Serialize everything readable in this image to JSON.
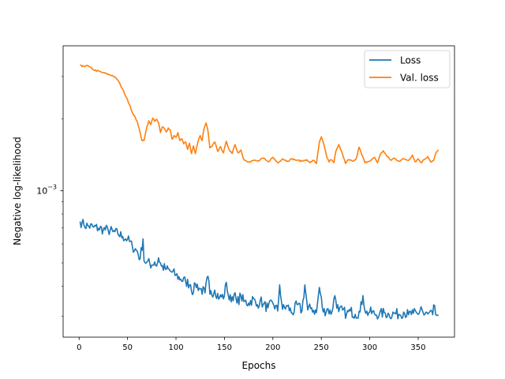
{
  "chart_data": {
    "type": "line",
    "xlabel": "Epochs",
    "ylabel": "Negative log-likelihood",
    "xlim": [
      -16.5,
      387.5
    ],
    "ylim": [
      0.000245,
      0.00403
    ],
    "yscale": "log",
    "x_ticks": [
      0,
      50,
      100,
      150,
      200,
      250,
      300,
      350
    ],
    "y_ticks": [
      {
        "value": 0.001,
        "base": "10",
        "exponent": "−3"
      }
    ],
    "grid": false,
    "legend": {
      "position": "top-right",
      "entries": [
        "Loss",
        "Val. loss"
      ]
    },
    "series": [
      {
        "name": "Loss",
        "color": "#1f77b4",
        "points": [
          [
            1,
            0.000745
          ],
          [
            3,
            0.000735
          ],
          [
            5,
            0.00072
          ],
          [
            10,
            0.000712
          ],
          [
            15,
            0.000705
          ],
          [
            20,
            0.000698
          ],
          [
            25,
            0.00069
          ],
          [
            30,
            0.000685
          ],
          [
            35,
            0.000675
          ],
          [
            40,
            0.000662
          ],
          [
            45,
            0.000645
          ],
          [
            50,
            0.000628
          ],
          [
            55,
            0.000585
          ],
          [
            60,
            0.00056
          ],
          [
            63,
            0.00052
          ],
          [
            66,
            0.00063
          ],
          [
            67,
            0.00051
          ],
          [
            70,
            0.000505
          ],
          [
            75,
            0.00049
          ],
          [
            78,
            0.000505
          ],
          [
            80,
            0.000485
          ],
          [
            82,
            0.000525
          ],
          [
            85,
            0.000485
          ],
          [
            90,
            0.00047
          ],
          [
            95,
            0.00046
          ],
          [
            100,
            0.000445
          ],
          [
            105,
            0.000428
          ],
          [
            110,
            0.000418
          ],
          [
            115,
            0.000406
          ],
          [
            118,
            0.000375
          ],
          [
            120,
            0.00041
          ],
          [
            125,
            0.00039
          ],
          [
            130,
            0.000375
          ],
          [
            133,
            0.00044
          ],
          [
            135,
            0.00037
          ],
          [
            140,
            0.000385
          ],
          [
            145,
            0.000358
          ],
          [
            150,
            0.000365
          ],
          [
            152,
            0.000415
          ],
          [
            155,
            0.00035
          ],
          [
            160,
            0.00037
          ],
          [
            163,
            0.00034
          ],
          [
            167,
            0.000365
          ],
          [
            170,
            0.000345
          ],
          [
            175,
            0.00034
          ],
          [
            180,
            0.000355
          ],
          [
            183,
            0.00033
          ],
          [
            187,
            0.00035
          ],
          [
            190,
            0.000335
          ],
          [
            195,
            0.000325
          ],
          [
            200,
            0.00034
          ],
          [
            205,
            0.000315
          ],
          [
            207,
            0.000405
          ],
          [
            210,
            0.00032
          ],
          [
            215,
            0.00033
          ],
          [
            220,
            0.000308
          ],
          [
            225,
            0.000335
          ],
          [
            230,
            0.000315
          ],
          [
            233,
            0.000405
          ],
          [
            236,
            0.000318
          ],
          [
            240,
            0.000325
          ],
          [
            245,
            0.00031
          ],
          [
            248,
            0.000395
          ],
          [
            252,
            0.000312
          ],
          [
            257,
            0.000322
          ],
          [
            260,
            0.000305
          ],
          [
            264,
            0.000365
          ],
          [
            268,
            0.000313
          ],
          [
            272,
            0.000318
          ],
          [
            276,
            0.000305
          ],
          [
            280,
            0.000315
          ],
          [
            285,
            0.000305
          ],
          [
            290,
            0.000312
          ],
          [
            293,
            0.000365
          ],
          [
            296,
            0.000308
          ],
          [
            300,
            0.000312
          ],
          [
            305,
            0.000306
          ],
          [
            310,
            0.000305
          ],
          [
            315,
            0.00031
          ],
          [
            320,
            0.000304
          ],
          [
            325,
            0.000308
          ],
          [
            330,
            0.000305
          ],
          [
            335,
            0.000312
          ],
          [
            340,
            0.000304
          ],
          [
            345,
            0.000308
          ],
          [
            350,
            0.000305
          ],
          [
            353,
            0.000328
          ],
          [
            356,
            0.000303
          ],
          [
            360,
            0.000306
          ],
          [
            365,
            0.000304
          ],
          [
            367,
            0.000332
          ],
          [
            368,
            0.000305
          ],
          [
            371,
            0.000302
          ]
        ],
        "noise": 0.045
      },
      {
        "name": "Val. loss",
        "color": "#ff7f0e",
        "points": [
          [
            1,
            0.00335
          ],
          [
            3,
            0.0033
          ],
          [
            8,
            0.00334
          ],
          [
            15,
            0.0032
          ],
          [
            25,
            0.00311
          ],
          [
            35,
            0.00302
          ],
          [
            40,
            0.0029
          ],
          [
            45,
            0.00265
          ],
          [
            50,
            0.0024
          ],
          [
            55,
            0.00212
          ],
          [
            60,
            0.00195
          ],
          [
            63,
            0.00175
          ],
          [
            65,
            0.00162
          ],
          [
            67,
            0.00162
          ],
          [
            70,
            0.00185
          ],
          [
            72,
            0.00196
          ],
          [
            74,
            0.00189
          ],
          [
            76,
            0.00201
          ],
          [
            78,
            0.00195
          ],
          [
            80,
            0.00199
          ],
          [
            82,
            0.00192
          ],
          [
            84,
            0.00175
          ],
          [
            86,
            0.00185
          ],
          [
            88,
            0.00182
          ],
          [
            90,
            0.00176
          ],
          [
            92,
            0.00183
          ],
          [
            94,
            0.0018
          ],
          [
            96,
            0.00164
          ],
          [
            98,
            0.0017
          ],
          [
            100,
            0.00167
          ],
          [
            102,
            0.00175
          ],
          [
            104,
            0.00162
          ],
          [
            106,
            0.00165
          ],
          [
            108,
            0.00157
          ],
          [
            110,
            0.0016
          ],
          [
            112,
            0.00149
          ],
          [
            114,
            0.00158
          ],
          [
            116,
            0.00143
          ],
          [
            118,
            0.00154
          ],
          [
            120,
            0.00143
          ],
          [
            123,
            0.00162
          ],
          [
            125,
            0.0017
          ],
          [
            127,
            0.00162
          ],
          [
            129,
            0.00182
          ],
          [
            131,
            0.00192
          ],
          [
            133,
            0.00178
          ],
          [
            135,
            0.00151
          ],
          [
            137,
            0.00153
          ],
          [
            140,
            0.0016
          ],
          [
            143,
            0.00146
          ],
          [
            146,
            0.00153
          ],
          [
            149,
            0.00144
          ],
          [
            152,
            0.00161
          ],
          [
            155,
            0.00148
          ],
          [
            158,
            0.00143
          ],
          [
            161,
            0.00156
          ],
          [
            164,
            0.00144
          ],
          [
            167,
            0.00148
          ],
          [
            170,
            0.00135
          ],
          [
            175,
            0.00132
          ],
          [
            180,
            0.00134
          ],
          [
            185,
            0.00133
          ],
          [
            190,
            0.00137
          ],
          [
            195,
            0.00132
          ],
          [
            200,
            0.00138
          ],
          [
            205,
            0.00131
          ],
          [
            210,
            0.00136
          ],
          [
            215,
            0.00133
          ],
          [
            220,
            0.00136
          ],
          [
            225,
            0.00134
          ],
          [
            230,
            0.00133
          ],
          [
            235,
            0.00135
          ],
          [
            238,
            0.00131
          ],
          [
            242,
            0.00134
          ],
          [
            245,
            0.0013
          ],
          [
            248,
            0.0016
          ],
          [
            250,
            0.00168
          ],
          [
            253,
            0.00154
          ],
          [
            256,
            0.00137
          ],
          [
            258,
            0.00132
          ],
          [
            260,
            0.00135
          ],
          [
            263,
            0.00131
          ],
          [
            265,
            0.00146
          ],
          [
            268,
            0.00156
          ],
          [
            272,
            0.00142
          ],
          [
            275,
            0.0013
          ],
          [
            278,
            0.00135
          ],
          [
            282,
            0.00133
          ],
          [
            286,
            0.00136
          ],
          [
            289,
            0.00152
          ],
          [
            292,
            0.00141
          ],
          [
            295,
            0.00131
          ],
          [
            300,
            0.00133
          ],
          [
            305,
            0.00138
          ],
          [
            308,
            0.00131
          ],
          [
            311,
            0.00142
          ],
          [
            314,
            0.00147
          ],
          [
            318,
            0.00139
          ],
          [
            322,
            0.00134
          ],
          [
            325,
            0.00137
          ],
          [
            330,
            0.00133
          ],
          [
            335,
            0.00136
          ],
          [
            340,
            0.00134
          ],
          [
            344,
            0.00141
          ],
          [
            347,
            0.00132
          ],
          [
            350,
            0.00136
          ],
          [
            353,
            0.00131
          ],
          [
            356,
            0.00135
          ],
          [
            360,
            0.00139
          ],
          [
            363,
            0.00132
          ],
          [
            366,
            0.00134
          ],
          [
            368,
            0.00143
          ],
          [
            371,
            0.00148
          ]
        ],
        "noise": 0.006
      }
    ]
  }
}
